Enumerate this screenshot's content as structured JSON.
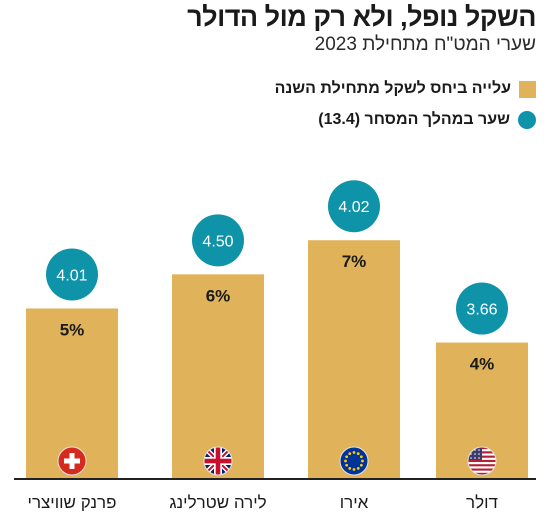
{
  "colors": {
    "bar": "#E0B35A",
    "rate_circle": "#0E93A9",
    "baseline": "#222222",
    "rate_text": "#ffffff",
    "pct_text": "#1a1a1a"
  },
  "chart_data": {
    "type": "bar",
    "title": "השקל נופל, ולא רק מול הדולר",
    "subtitle": "שערי המט\"ח מתחילת 2023",
    "legend": [
      {
        "label": "עלייה ביחס לשקל מתחילת השנה",
        "marker": "square",
        "color": "#E0B35A"
      },
      {
        "label": "שער במהלך המסחר (13.4)",
        "marker": "circle",
        "color": "#0E93A9"
      }
    ],
    "categories": [
      "פרנק שוויצרי",
      "לירה שטרלינג",
      "אירו",
      "דולר"
    ],
    "flag_icons": [
      "swiss-flag-icon",
      "uk-flag-icon",
      "eu-flag-icon",
      "us-flag-icon"
    ],
    "series": [
      {
        "name": "עלייה ביחס לשקל מתחילת השנה",
        "values": [
          5,
          6,
          7,
          4
        ],
        "labels": [
          "5%",
          "6%",
          "7%",
          "4%"
        ]
      },
      {
        "name": "שער במהלך המסחר (13.4)",
        "values": [
          4.01,
          4.5,
          4.02,
          3.66
        ],
        "labels": [
          "4.01",
          "4.50",
          "4.02",
          "3.66"
        ]
      }
    ],
    "ylim": [
      0,
      9
    ],
    "grid": false,
    "legend_position": "top-right"
  }
}
